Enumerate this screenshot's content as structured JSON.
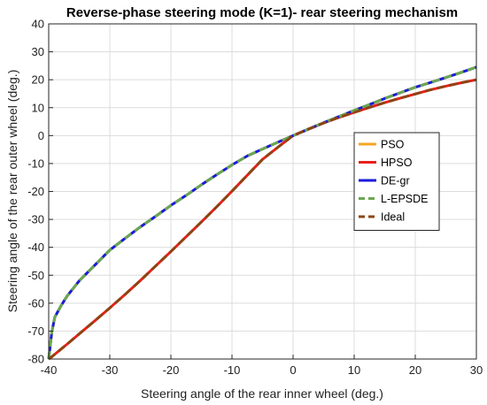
{
  "chart_data": {
    "type": "line",
    "title": "Reverse-phase steering mode (K=1)- rear steering mechanism",
    "xlabel": "Steering angle of the rear inner wheel (deg.)",
    "ylabel": "Steering angle of the rear outer wheel (deg.)",
    "xlim": [
      -40,
      30
    ],
    "ylim": [
      -80,
      40
    ],
    "xticks": [
      -40,
      -30,
      -20,
      -10,
      0,
      10,
      20,
      30
    ],
    "yticks": [
      -80,
      -70,
      -60,
      -50,
      -40,
      -30,
      -20,
      -10,
      0,
      10,
      20,
      30,
      40
    ],
    "grid": true,
    "legend_position": "right",
    "x": [
      -40,
      -39.5,
      -39,
      -38,
      -37,
      -35,
      -32.5,
      -30,
      -27.5,
      -25,
      -22.5,
      -20,
      -17.5,
      -15,
      -12.5,
      -10,
      -7.5,
      -5,
      -2.5,
      0,
      2.5,
      5,
      7.5,
      10,
      12.5,
      15,
      17.5,
      20,
      22.5,
      25,
      27.5,
      30
    ],
    "series": [
      {
        "name": "PSO",
        "color": "#f5a623",
        "style": "solid",
        "values": [
          -80,
          -70.5,
          -65,
          -61,
          -57.5,
          -52,
          -46.5,
          -41,
          -36.8,
          -32.7,
          -28.9,
          -25,
          -21.4,
          -17.6,
          -14,
          -10.5,
          -7.3,
          -4.8,
          -2.4,
          0,
          2.3,
          4.6,
          6.8,
          9.0,
          11.1,
          13.3,
          15.3,
          17.3,
          19.0,
          20.8,
          22.6,
          24.5
        ]
      },
      {
        "name": "HPSO",
        "color": "#e8201a",
        "style": "solid",
        "values": [
          -80,
          -79.2,
          -78.3,
          -76.5,
          -74.7,
          -71,
          -66.4,
          -61.7,
          -56.9,
          -51.9,
          -46.7,
          -41.5,
          -36.2,
          -30.9,
          -25.5,
          -19.9,
          -14.2,
          -8.5,
          -4.2,
          0,
          2.3,
          4.5,
          6.5,
          8.3,
          10.1,
          11.8,
          13.4,
          14.9,
          16.4,
          17.7,
          18.9,
          20.0
        ]
      },
      {
        "name": "DE-gr",
        "color": "#1a1adc",
        "style": "solid",
        "values": [
          -80,
          -70.5,
          -65,
          -61,
          -57.5,
          -52,
          -46.5,
          -41,
          -36.8,
          -32.7,
          -28.9,
          -25,
          -21.4,
          -17.6,
          -14,
          -10.5,
          -7.3,
          -4.8,
          -2.4,
          0,
          2.3,
          4.6,
          6.8,
          9.0,
          11.1,
          13.3,
          15.3,
          17.3,
          19.0,
          20.8,
          22.6,
          24.5
        ]
      },
      {
        "name": "L-EPSDE",
        "color": "#6aa84f",
        "style": "dashed",
        "values": [
          -80,
          -70.5,
          -65,
          -61,
          -57.5,
          -52,
          -46.5,
          -41,
          -36.8,
          -32.7,
          -28.9,
          -25,
          -21.4,
          -17.6,
          -14,
          -10.5,
          -7.3,
          -4.8,
          -2.4,
          0,
          2.3,
          4.6,
          6.8,
          9.0,
          11.1,
          13.3,
          15.3,
          17.3,
          19.0,
          20.8,
          22.6,
          24.5
        ]
      },
      {
        "name": "Ideal",
        "color": "#8b4513",
        "style": "dashed",
        "values": [
          -80,
          -79.2,
          -78.3,
          -76.5,
          -74.7,
          -71,
          -66.4,
          -61.7,
          -56.9,
          -51.9,
          -46.7,
          -41.5,
          -36.2,
          -30.9,
          -25.5,
          -19.9,
          -14.2,
          -8.5,
          -4.2,
          0,
          2.3,
          4.5,
          6.5,
          8.3,
          10.1,
          11.8,
          13.4,
          14.9,
          16.4,
          17.7,
          18.9,
          20.0
        ]
      }
    ]
  }
}
